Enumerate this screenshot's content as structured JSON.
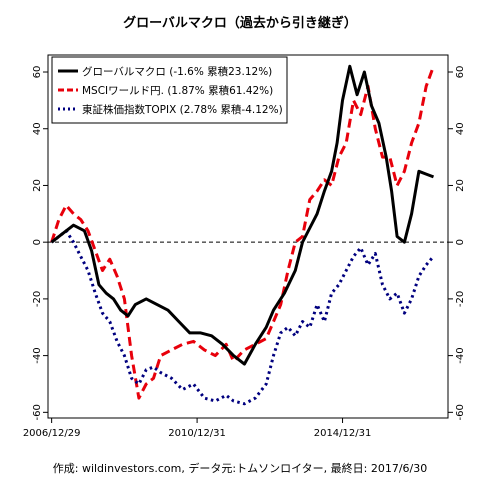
{
  "chart_data": {
    "type": "line",
    "title": "グローバルマクロ（過去から引き継ぎ）",
    "x_ticks": [
      "2006/12/29",
      "2010/12/31",
      "2014/12/31"
    ],
    "ylim": [
      -62,
      66
    ],
    "y_ticks": [
      -60,
      -40,
      -20,
      0,
      20,
      40,
      60
    ],
    "y_tick_labels": [
      "-60",
      "-40",
      "-20",
      "0",
      "20",
      "40",
      "60"
    ],
    "grid": false,
    "zero_line": "dashed",
    "legend_position": "top-left",
    "footer": "作成: wildinvestors.com, データ元:トムソンロイター, 最終日: 2017/6/30",
    "series": [
      {
        "name": "グローバルマクロ (-1.6% 累積23.12%)",
        "color": "#000000",
        "style": "solid",
        "x": [
          2007.0,
          2007.3,
          2007.6,
          2007.9,
          2008.1,
          2008.3,
          2008.5,
          2008.7,
          2008.9,
          2009.1,
          2009.3,
          2009.6,
          2009.9,
          2010.2,
          2010.5,
          2010.8,
          2011.1,
          2011.4,
          2011.7,
          2012.0,
          2012.3,
          2012.6,
          2012.9,
          2013.1,
          2013.4,
          2013.7,
          2013.9,
          2014.1,
          2014.3,
          2014.5,
          2014.7,
          2014.85,
          2015.0,
          2015.2,
          2015.4,
          2015.6,
          2015.8,
          2016.0,
          2016.2,
          2016.35,
          2016.5,
          2016.7,
          2016.9,
          2017.1,
          2017.3,
          2017.5
        ],
        "y": [
          0,
          3,
          6,
          4,
          -3,
          -15,
          -18,
          -20,
          -24,
          -26,
          -22,
          -20,
          -22,
          -24,
          -28,
          -32,
          -32,
          -33,
          -36,
          -40,
          -43,
          -36,
          -30,
          -24,
          -18,
          -10,
          0,
          5,
          10,
          18,
          25,
          35,
          50,
          62,
          52,
          60,
          48,
          42,
          30,
          18,
          2,
          0,
          10,
          25,
          24,
          23
        ]
      },
      {
        "name": "MSCIワールド円. (1.87% 累積61.42%)",
        "color": "#e8000b",
        "style": "dashed",
        "x": [
          2007.0,
          2007.2,
          2007.4,
          2007.6,
          2007.8,
          2008.0,
          2008.2,
          2008.4,
          2008.6,
          2008.8,
          2009.0,
          2009.2,
          2009.4,
          2009.6,
          2009.8,
          2010.0,
          2010.3,
          2010.6,
          2010.9,
          2011.2,
          2011.5,
          2011.8,
          2012.0,
          2012.3,
          2012.6,
          2012.9,
          2013.1,
          2013.3,
          2013.5,
          2013.7,
          2013.9,
          2014.1,
          2014.3,
          2014.5,
          2014.7,
          2014.9,
          2015.1,
          2015.3,
          2015.5,
          2015.7,
          2015.9,
          2016.1,
          2016.3,
          2016.5,
          2016.7,
          2016.9,
          2017.1,
          2017.3,
          2017.5
        ],
        "y": [
          0,
          8,
          13,
          10,
          8,
          4,
          -3,
          -10,
          -6,
          -12,
          -20,
          -40,
          -55,
          -50,
          -48,
          -40,
          -38,
          -36,
          -35,
          -38,
          -40,
          -36,
          -42,
          -38,
          -36,
          -34,
          -28,
          -22,
          -10,
          0,
          2,
          15,
          18,
          22,
          20,
          30,
          35,
          50,
          45,
          55,
          40,
          30,
          30,
          20,
          25,
          35,
          42,
          55,
          62
        ]
      },
      {
        "name": "東証株価指数TOPIX (2.78% 累積-4.12%)",
        "color": "#00007f",
        "style": "dotted",
        "x": [
          2007.0,
          2007.2,
          2007.4,
          2007.6,
          2007.8,
          2008.0,
          2008.2,
          2008.4,
          2008.6,
          2008.8,
          2009.0,
          2009.2,
          2009.4,
          2009.6,
          2009.8,
          2010.0,
          2010.3,
          2010.6,
          2010.9,
          2011.2,
          2011.5,
          2011.8,
          2012.0,
          2012.3,
          2012.6,
          2012.9,
          2013.1,
          2013.3,
          2013.5,
          2013.7,
          2013.9,
          2014.1,
          2014.3,
          2014.5,
          2014.7,
          2014.9,
          2015.1,
          2015.3,
          2015.5,
          2015.7,
          2015.9,
          2016.1,
          2016.3,
          2016.5,
          2016.7,
          2016.9,
          2017.1,
          2017.3,
          2017.5
        ],
        "y": [
          0,
          2,
          4,
          0,
          -5,
          -10,
          -18,
          -25,
          -28,
          -35,
          -40,
          -48,
          -50,
          -45,
          -44,
          -46,
          -48,
          -52,
          -50,
          -55,
          -56,
          -54,
          -56,
          -57,
          -55,
          -50,
          -40,
          -32,
          -30,
          -33,
          -28,
          -30,
          -22,
          -28,
          -18,
          -15,
          -10,
          -5,
          -2,
          -8,
          -4,
          -15,
          -20,
          -18,
          -25,
          -20,
          -12,
          -8,
          -5
        ]
      }
    ]
  }
}
